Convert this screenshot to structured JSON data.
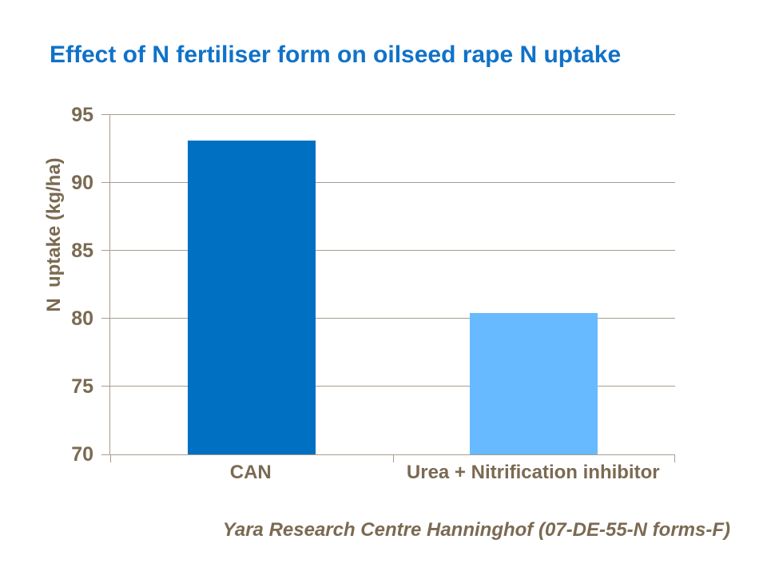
{
  "title": "Effect of N fertiliser form on oilseed rape N uptake",
  "footer": "Yara Research Centre Hanninghof (07-DE-55-N forms-F)",
  "colors": {
    "title": "#1072C8",
    "brown_text": "#7B6A52",
    "axis": "#A79D90",
    "bar_can": "#0070C2",
    "bar_urea": "#67BAFF"
  },
  "chart_data": {
    "type": "bar",
    "categories": [
      "CAN",
      "Urea + Nitrification inhibitor"
    ],
    "values": [
      93.1,
      80.4
    ],
    "series_colors": [
      "#0070C2",
      "#67BAFF"
    ],
    "title": "Effect of N fertiliser form on oilseed rape N uptake",
    "xlabel": "",
    "ylabel": "N  uptake (kg/ha)",
    "ylim": [
      70,
      95
    ],
    "yticks": [
      70,
      75,
      80,
      85,
      90,
      95
    ],
    "grid": true,
    "legend": false,
    "annotation": "Yara Research Centre Hanninghof (07-DE-55-N forms-F)"
  }
}
